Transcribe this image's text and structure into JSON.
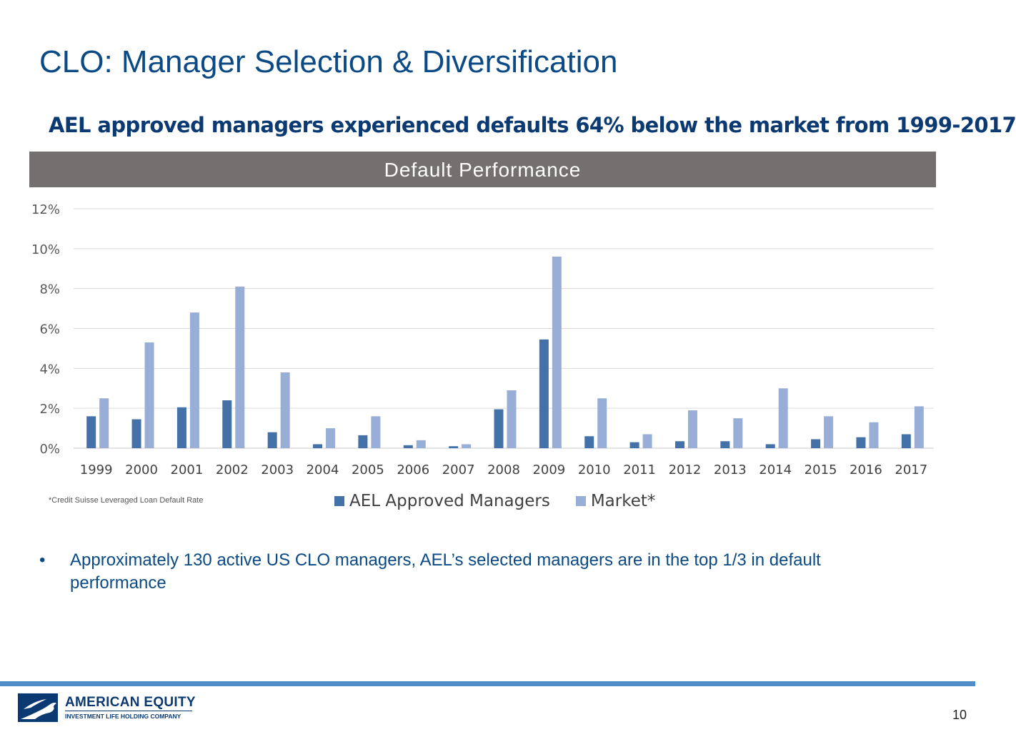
{
  "slide": {
    "title": "CLO: Manager Selection & Diversification",
    "subtitle": "AEL approved managers experienced defaults 64% below the market from 1999-2017",
    "chart_header": "Default Performance",
    "footnote": "*Credit Suisse Leveraged Loan Default Rate",
    "bullet_symbol": "•",
    "bullet_text": "Approximately 130 active US CLO managers, AEL’s selected managers are in the top 1/3 in default performance",
    "page_number": "10",
    "footer_color": "#4f8ec9"
  },
  "logo": {
    "name": "AMERICAN EQUITY",
    "tagline": "INVESTMENT LIFE HOLDING COMPANY",
    "icon": "eagle-icon"
  },
  "chart_data": {
    "type": "bar",
    "title": "Default Performance",
    "categories": [
      "1999",
      "2000",
      "2001",
      "2002",
      "2003",
      "2004",
      "2005",
      "2006",
      "2007",
      "2008",
      "2009",
      "2010",
      "2011",
      "2012",
      "2013",
      "2014",
      "2015",
      "2016",
      "2017"
    ],
    "series": [
      {
        "name": "AEL Approved Managers",
        "color": "#4472a8",
        "values": [
          1.6,
          1.45,
          2.05,
          2.4,
          0.8,
          0.2,
          0.65,
          0.15,
          0.1,
          1.95,
          5.45,
          0.6,
          0.3,
          0.35,
          0.35,
          0.2,
          0.45,
          0.55,
          0.7
        ]
      },
      {
        "name": "Market*",
        "color": "#98aed6",
        "values": [
          2.5,
          5.3,
          6.8,
          8.1,
          3.8,
          1.0,
          1.6,
          0.4,
          0.2,
          2.9,
          9.6,
          2.5,
          0.7,
          1.9,
          1.5,
          3.0,
          1.6,
          1.3,
          2.1
        ]
      }
    ],
    "yticks": [
      "0%",
      "2%",
      "4%",
      "6%",
      "8%",
      "10%",
      "12%"
    ],
    "ylim": [
      0,
      12
    ],
    "grid": true,
    "legend_position": "bottom"
  }
}
